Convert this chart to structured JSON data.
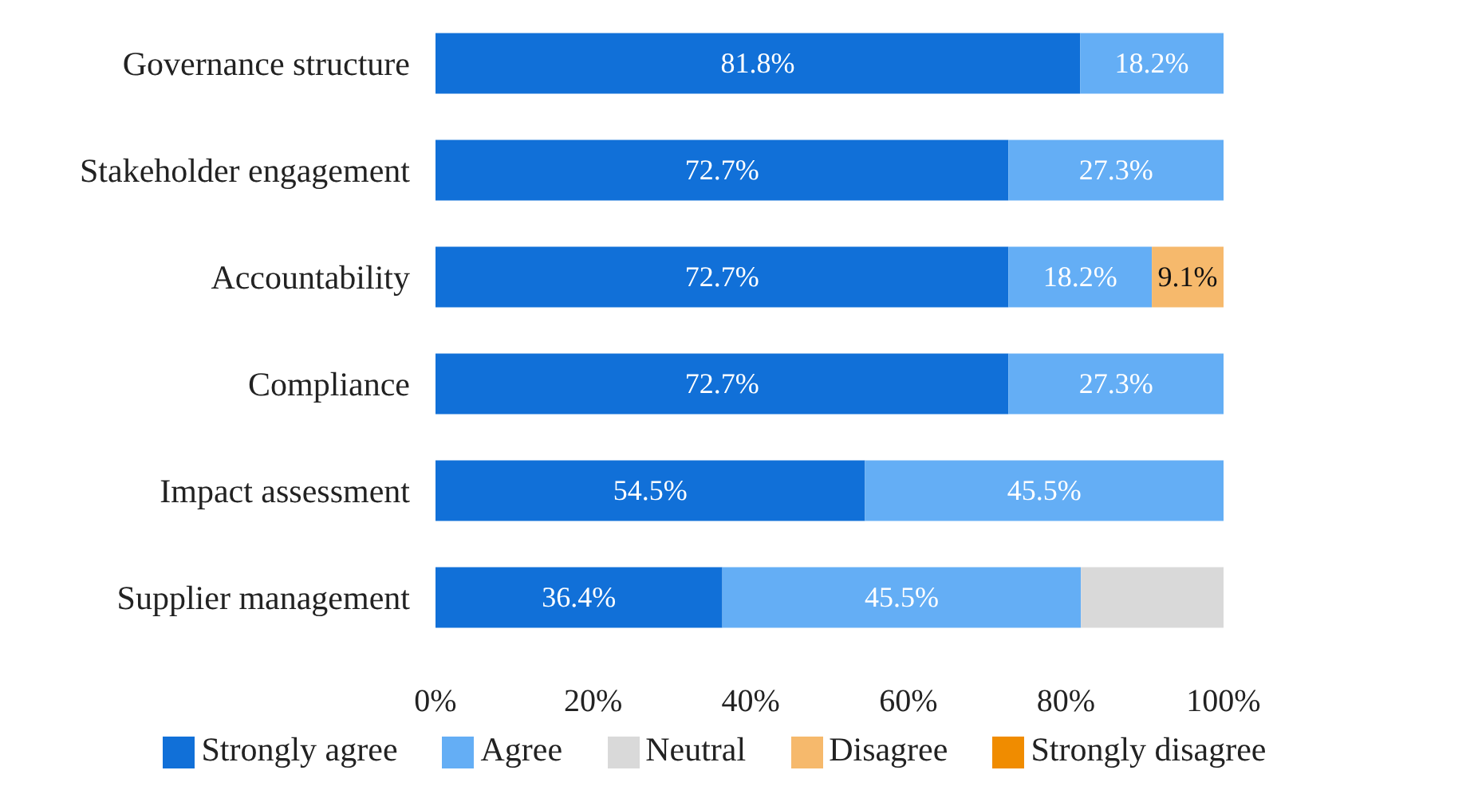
{
  "chart_data": {
    "type": "bar",
    "orientation": "horizontal",
    "stacked": true,
    "categories": [
      "Governance structure",
      "Stakeholder engagement",
      "Accountability",
      "Compliance",
      "Impact assessment",
      "Supplier management"
    ],
    "series": [
      {
        "name": "Strongly agree",
        "color": "#1170d8",
        "values": [
          81.8,
          72.7,
          72.7,
          72.7,
          54.5,
          36.4
        ],
        "value_labels": [
          "81.8%",
          "72.7%",
          "72.7%",
          "72.7%",
          "54.5%",
          "36.4%"
        ]
      },
      {
        "name": "Agree",
        "color": "#64aef5",
        "values": [
          18.2,
          27.3,
          18.2,
          27.3,
          45.5,
          45.5
        ],
        "value_labels": [
          "18.2%",
          "27.3%",
          "18.2%",
          "27.3%",
          "45.5%",
          "45.5%"
        ]
      },
      {
        "name": "Neutral",
        "color": "#d9d9d9",
        "values": [
          null,
          null,
          null,
          null,
          null,
          18.2
        ],
        "value_labels": [
          null,
          null,
          null,
          null,
          null,
          null
        ]
      },
      {
        "name": "Disagree",
        "color": "#f6b96c",
        "values": [
          null,
          null,
          9.1,
          null,
          null,
          null
        ],
        "value_labels": [
          null,
          null,
          "9.1%",
          null,
          null,
          null
        ]
      },
      {
        "name": "Strongly disagree",
        "color": "#f08c00",
        "values": [
          null,
          null,
          null,
          null,
          null,
          null
        ],
        "value_labels": [
          null,
          null,
          null,
          null,
          null,
          null
        ]
      }
    ],
    "xlim": [
      0,
      100
    ],
    "xticks": [
      {
        "value": 0,
        "label": "0%"
      },
      {
        "value": 20,
        "label": "20%"
      },
      {
        "value": 40,
        "label": "40%"
      },
      {
        "value": 60,
        "label": "60%"
      },
      {
        "value": 80,
        "label": "80%"
      },
      {
        "value": 100,
        "label": "100%"
      }
    ],
    "grid": false,
    "legend": "bottom"
  }
}
